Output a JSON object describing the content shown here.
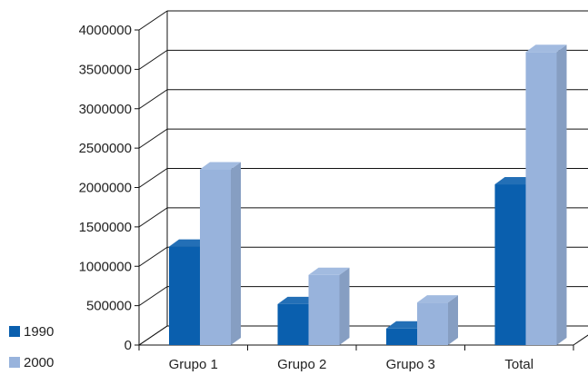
{
  "chart_data": {
    "type": "bar",
    "title": "",
    "xlabel": "",
    "ylabel": "",
    "categories": [
      "Grupo 1",
      "Grupo 2",
      "Grupo 3",
      "Total"
    ],
    "series": [
      {
        "name": "1990",
        "color": "#0a5fae",
        "values": [
          1250000,
          520000,
          210000,
          2040000
        ]
      },
      {
        "name": "2000",
        "color": "#98b3dc",
        "values": [
          2230000,
          890000,
          540000,
          3720000
        ]
      }
    ],
    "ylim": [
      0,
      4000000
    ],
    "yticks": [
      "0",
      "500000",
      "1000000",
      "1500000",
      "2000000",
      "2500000",
      "3000000",
      "3500000",
      "4000000"
    ],
    "grid": true,
    "legend_position": "bottom-left"
  }
}
